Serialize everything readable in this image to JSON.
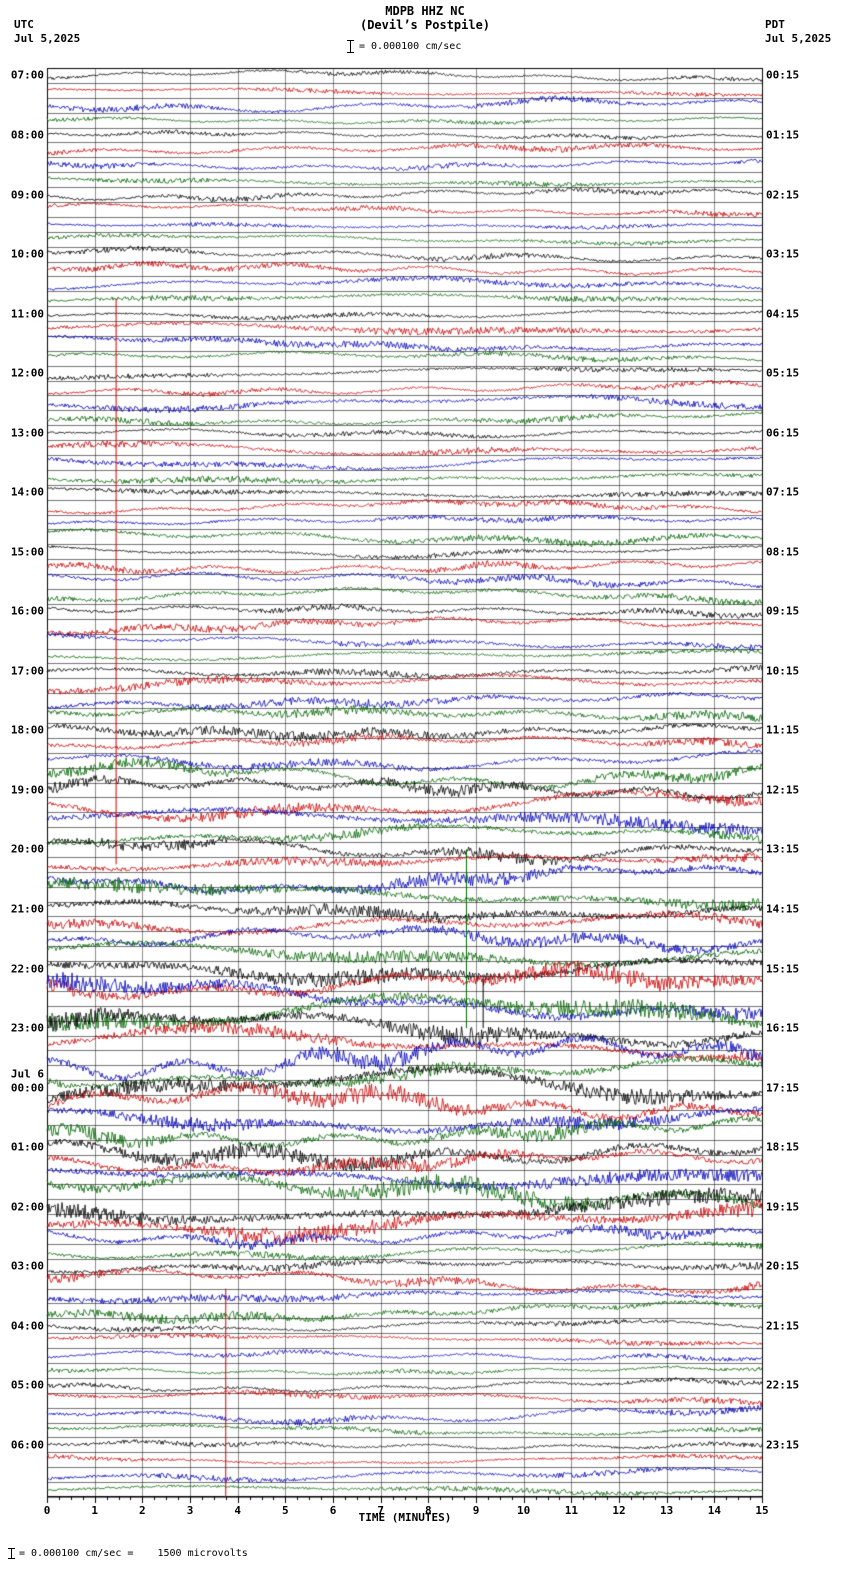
{
  "header": {
    "title": "MDPB HHZ NC",
    "subtitle": "(Devil’s Postpile)",
    "left_tz": "UTC",
    "left_date": "Jul 5,2025",
    "right_tz": "PDT",
    "right_date": "Jul 5,2025",
    "scale_label": "= 0.000100 cm/sec"
  },
  "footer": {
    "xlabel": "TIME (MINUTES)",
    "scale_note": "= 0.000100 cm/sec =    1500 microvolts"
  },
  "chart_data": {
    "type": "line",
    "description": "24-hour helicorder seismogram, 96 trace lines of 15 minutes each, colors cycling black/red/blue/green",
    "x_range_minutes": [
      0,
      15
    ],
    "x_ticks": [
      "0",
      "1",
      "2",
      "3",
      "4",
      "5",
      "6",
      "7",
      "8",
      "9",
      "10",
      "11",
      "12",
      "13",
      "14",
      "15"
    ],
    "rows": 96,
    "trace_colors": [
      "#000000",
      "#cc0000",
      "#0000bb",
      "#006600"
    ],
    "waveform": "procedural-noise",
    "noise_seed": 20250705,
    "amp_profile": [
      {
        "from": 0,
        "to": 12,
        "amp": 0.8
      },
      {
        "from": 12,
        "to": 40,
        "amp": 1.0
      },
      {
        "from": 40,
        "to": 48,
        "amp": 1.4
      },
      {
        "from": 48,
        "to": 60,
        "amp": 2.0
      },
      {
        "from": 60,
        "to": 78,
        "amp": 2.6
      },
      {
        "from": 78,
        "to": 84,
        "amp": 1.3
      },
      {
        "from": 84,
        "to": 96,
        "amp": 0.9
      }
    ],
    "artifacts": [
      {
        "color": "#cc0000",
        "x_min": 1.45,
        "row_start": 15.5,
        "row_end": 53.5
      },
      {
        "color": "#cc0000",
        "x_min": 3.75,
        "row_start": 82,
        "row_end": 96
      },
      {
        "color": "#006600",
        "x_min": 8.8,
        "row_start": 52.5,
        "row_end": 64.5
      },
      {
        "color": "#000000",
        "x_min": 9.15,
        "row_start": 61,
        "row_end": 64.5
      }
    ],
    "left_labels": [
      {
        "row": 0,
        "text": "07:00"
      },
      {
        "row": 4,
        "text": "08:00"
      },
      {
        "row": 8,
        "text": "09:00"
      },
      {
        "row": 12,
        "text": "10:00"
      },
      {
        "row": 16,
        "text": "11:00"
      },
      {
        "row": 20,
        "text": "12:00"
      },
      {
        "row": 24,
        "text": "13:00"
      },
      {
        "row": 28,
        "text": "14:00"
      },
      {
        "row": 32,
        "text": "15:00"
      },
      {
        "row": 36,
        "text": "16:00"
      },
      {
        "row": 40,
        "text": "17:00"
      },
      {
        "row": 44,
        "text": "18:00"
      },
      {
        "row": 48,
        "text": "19:00"
      },
      {
        "row": 52,
        "text": "20:00"
      },
      {
        "row": 56,
        "text": "21:00"
      },
      {
        "row": 60,
        "text": "22:00"
      },
      {
        "row": 64,
        "text": "23:00"
      },
      {
        "row": 67.1,
        "text": "Jul 6"
      },
      {
        "row": 68,
        "text": "00:00"
      },
      {
        "row": 72,
        "text": "01:00"
      },
      {
        "row": 76,
        "text": "02:00"
      },
      {
        "row": 80,
        "text": "03:00"
      },
      {
        "row": 84,
        "text": "04:00"
      },
      {
        "row": 88,
        "text": "05:00"
      },
      {
        "row": 92,
        "text": "06:00"
      }
    ],
    "right_labels": [
      {
        "row": 0,
        "text": "00:15"
      },
      {
        "row": 4,
        "text": "01:15"
      },
      {
        "row": 8,
        "text": "02:15"
      },
      {
        "row": 12,
        "text": "03:15"
      },
      {
        "row": 16,
        "text": "04:15"
      },
      {
        "row": 20,
        "text": "05:15"
      },
      {
        "row": 24,
        "text": "06:15"
      },
      {
        "row": 28,
        "text": "07:15"
      },
      {
        "row": 32,
        "text": "08:15"
      },
      {
        "row": 36,
        "text": "09:15"
      },
      {
        "row": 40,
        "text": "10:15"
      },
      {
        "row": 44,
        "text": "11:15"
      },
      {
        "row": 48,
        "text": "12:15"
      },
      {
        "row": 52,
        "text": "13:15"
      },
      {
        "row": 56,
        "text": "14:15"
      },
      {
        "row": 60,
        "text": "15:15"
      },
      {
        "row": 64,
        "text": "16:15"
      },
      {
        "row": 68,
        "text": "17:15"
      },
      {
        "row": 72,
        "text": "18:15"
      },
      {
        "row": 76,
        "text": "19:15"
      },
      {
        "row": 80,
        "text": "20:15"
      },
      {
        "row": 84,
        "text": "21:15"
      },
      {
        "row": 88,
        "text": "22:15"
      },
      {
        "row": 92,
        "text": "23:15"
      }
    ]
  }
}
